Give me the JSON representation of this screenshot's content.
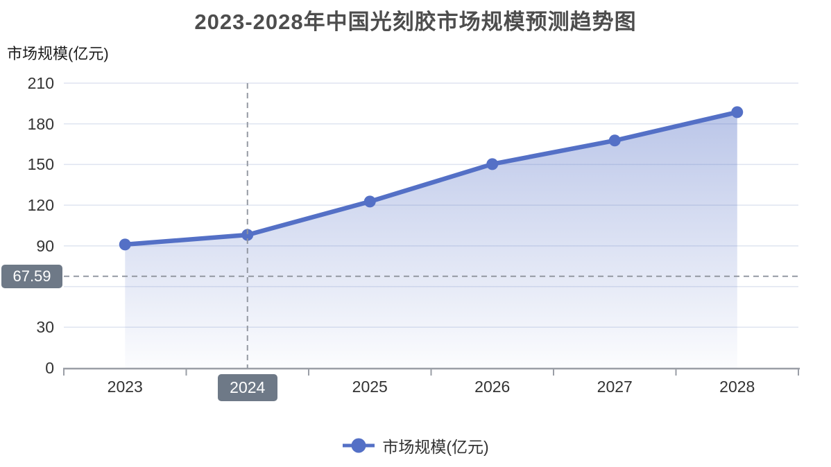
{
  "title": "2023-2028年中国光刻胶市场规模预测趋势图",
  "y_axis_name": "市场规模(亿元)",
  "legend": {
    "label": "市场规模(亿元)"
  },
  "axis_pointer": {
    "x_label": "2024",
    "y_label": "67.59"
  },
  "colors": {
    "line": "#5470c6",
    "area_top": "rgba(84,112,198,0.40)",
    "area_bottom": "rgba(84,112,198,0.02)",
    "grid": "#dfe4f0",
    "axis": "#9a9ea6",
    "crosshair": "#8f949e",
    "pointer_bg": "#6e7987",
    "title": "#4d4d4d",
    "text": "#333333"
  },
  "chart_data": {
    "type": "area",
    "title": "2023-2028年中国光刻胶市场规模预测趋势图",
    "categories": [
      "2023",
      "2024",
      "2025",
      "2026",
      "2027",
      "2028"
    ],
    "series": [
      {
        "name": "市场规模(亿元)",
        "values": [
          91.0,
          98.1,
          122.7,
          150.3,
          167.7,
          188.6
        ]
      }
    ],
    "xlabel": "",
    "ylabel": "市场规模(亿元)",
    "ylim": [
      0,
      210
    ],
    "ytick_step": 30,
    "yticks_shown": [
      0,
      30,
      90,
      120,
      150,
      180,
      210
    ],
    "grid": true,
    "legend_position": "bottom"
  }
}
